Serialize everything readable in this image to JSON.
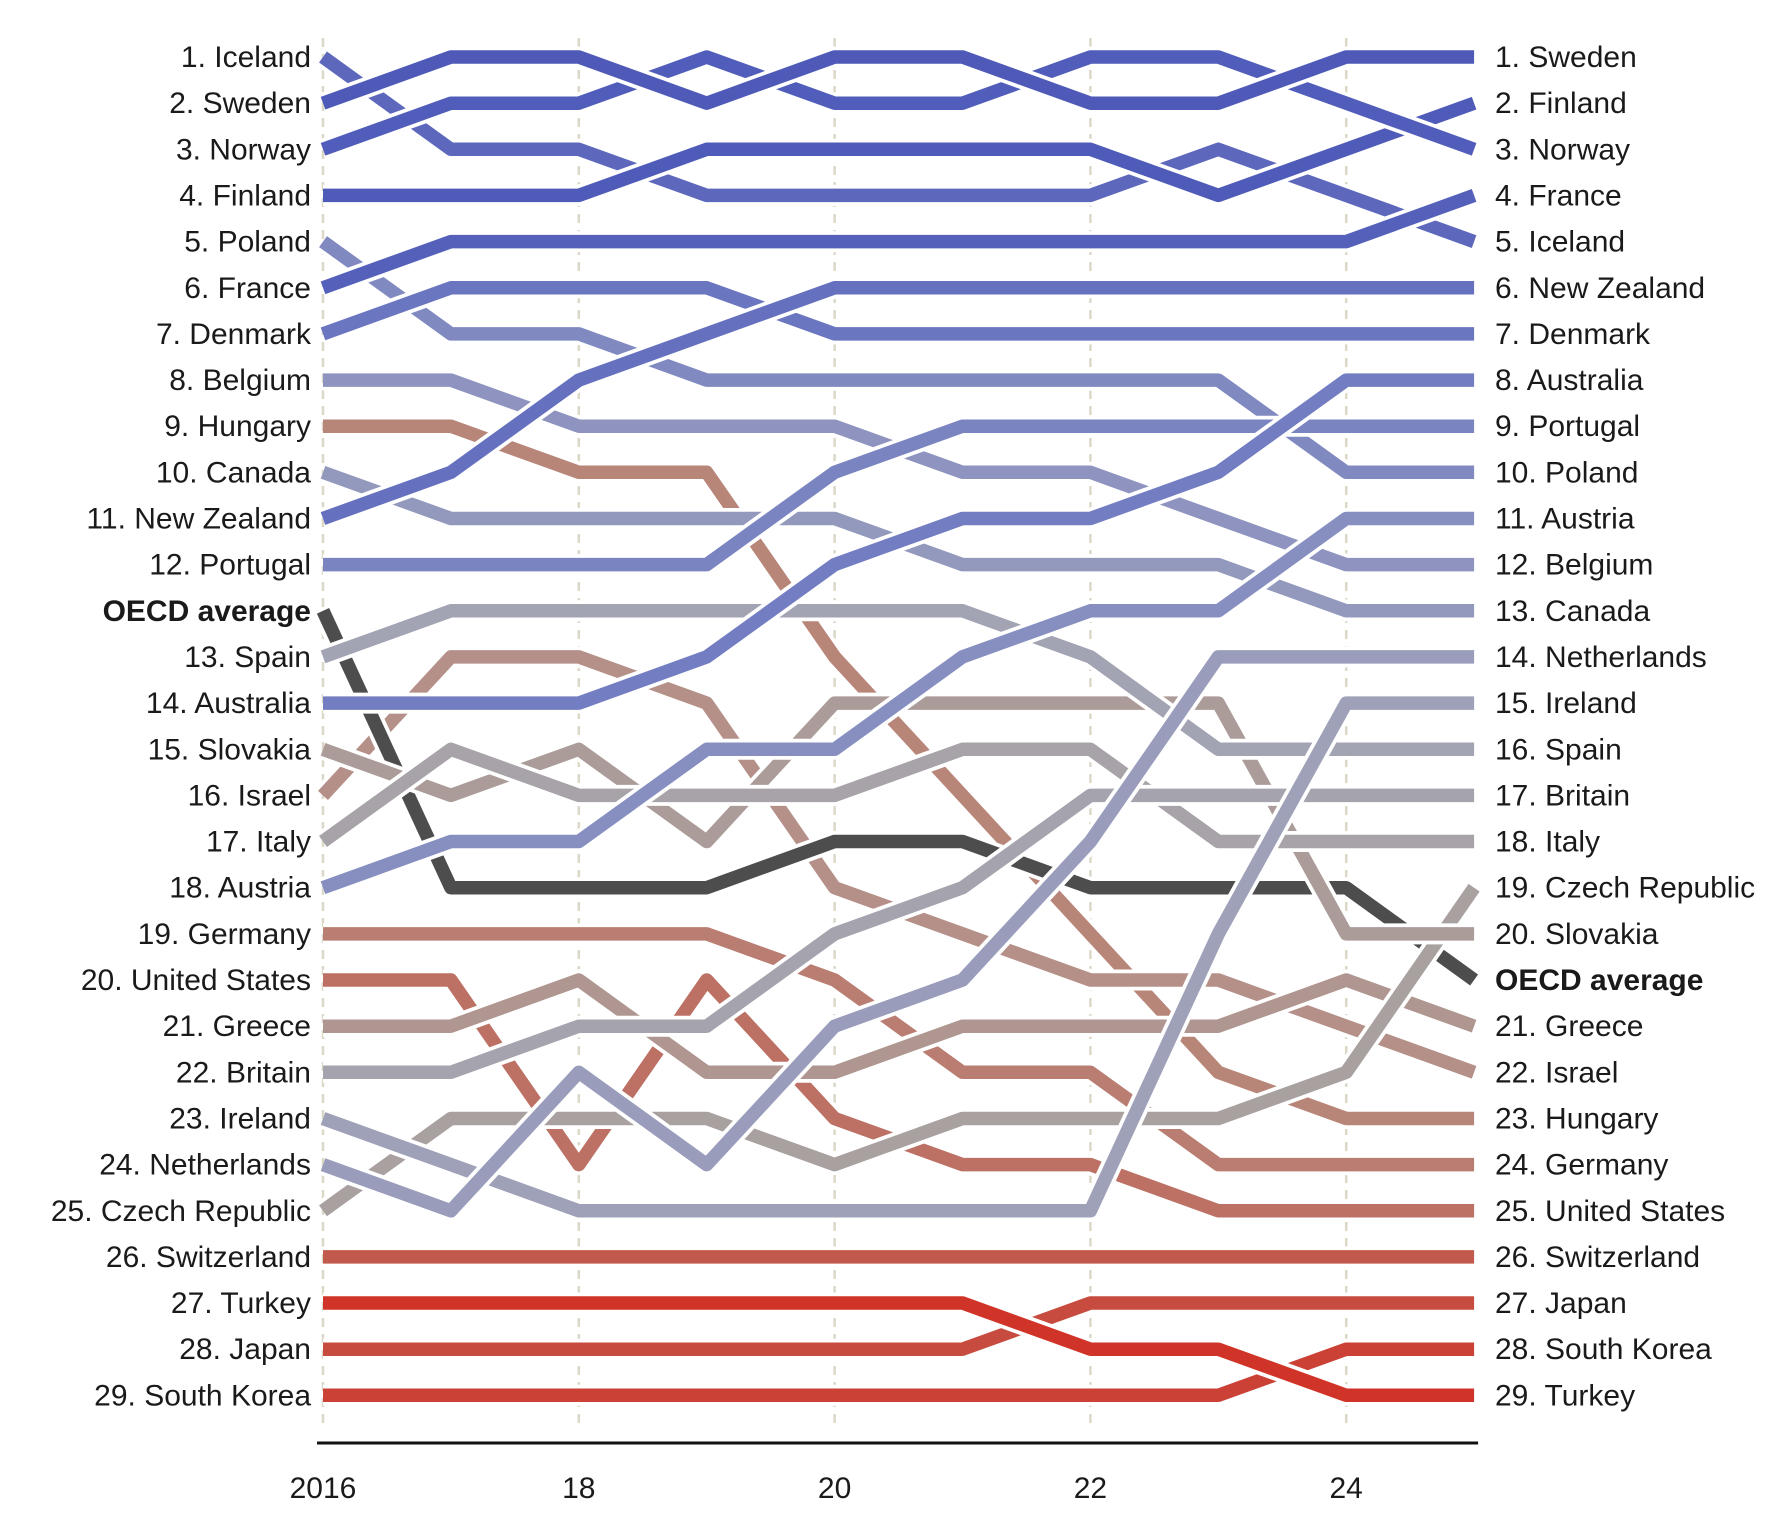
{
  "page": {
    "background": "#ffffff"
  },
  "chart_data": {
    "type": "bump",
    "title": "",
    "subtitle": "",
    "x_axis": {
      "years": [
        2016,
        2017,
        2018,
        2019,
        2020,
        2021,
        2022,
        2023,
        2024,
        2025
      ],
      "ticks": [
        {
          "year": 2016,
          "label": "2016"
        },
        {
          "year": 2018,
          "label": "18"
        },
        {
          "year": 2020,
          "label": "20"
        },
        {
          "year": 2022,
          "label": "22"
        },
        {
          "year": 2024,
          "label": "24"
        }
      ],
      "grid": "dashed-vertical"
    },
    "slot_count": 30,
    "left_labels": [
      "1. Iceland",
      "2. Sweden",
      "3. Norway",
      "4. Finland",
      "5. Poland",
      "6. France",
      "7. Denmark",
      "8. Belgium",
      "9. Hungary",
      "10. Canada",
      "11. New Zealand",
      "12. Portugal",
      "OECD average",
      "13. Spain",
      "14. Australia",
      "15. Slovakia",
      "16. Israel",
      "17. Italy",
      "18. Austria",
      "19. Germany",
      "20. United States",
      "21. Greece",
      "22. Britain",
      "23. Ireland",
      "24. Netherlands",
      "25. Czech Republic",
      "26. Switzerland",
      "27. Turkey",
      "28. Japan",
      "29. South Korea"
    ],
    "right_labels": [
      "1. Sweden",
      "2. Finland",
      "3. Norway",
      "4. France",
      "5. Iceland",
      "6. New Zealand",
      "7. Denmark",
      "8. Australia",
      "9. Portugal",
      "10. Poland",
      "11. Austria",
      "12. Belgium",
      "13. Canada",
      "14. Netherlands",
      "15. Ireland",
      "16. Spain",
      "17. Britain",
      "18. Italy",
      "19. Czech Republic",
      "20. Slovakia",
      "OECD average",
      "21. Greece",
      "22. Israel",
      "23. Hungary",
      "24. Germany",
      "25. United States",
      "26. Switzerland",
      "27. Japan",
      "28. South Korea",
      "29. Turkey"
    ],
    "series": [
      {
        "name": "Iceland",
        "color": "#5d68bd",
        "slots": [
          1,
          3,
          3,
          4,
          4,
          4,
          4,
          3,
          4,
          5
        ]
      },
      {
        "name": "Sweden",
        "color": "#4e59b8",
        "slots": [
          2,
          1,
          1,
          2,
          1,
          1,
          2,
          2,
          1,
          1
        ]
      },
      {
        "name": "Norway",
        "color": "#515dba",
        "slots": [
          3,
          2,
          2,
          1,
          2,
          2,
          1,
          1,
          2,
          3
        ]
      },
      {
        "name": "Finland",
        "color": "#4f5bb9",
        "slots": [
          4,
          4,
          4,
          3,
          3,
          3,
          3,
          4,
          3,
          2
        ]
      },
      {
        "name": "Poland",
        "color": "#8189c1",
        "slots": [
          5,
          7,
          7,
          8,
          8,
          8,
          8,
          8,
          10,
          10
        ]
      },
      {
        "name": "France",
        "color": "#5560bb",
        "slots": [
          6,
          5,
          5,
          5,
          5,
          5,
          5,
          5,
          5,
          4
        ]
      },
      {
        "name": "Denmark",
        "color": "#6b76c0",
        "slots": [
          7,
          6,
          6,
          6,
          7,
          7,
          7,
          7,
          7,
          7
        ]
      },
      {
        "name": "Belgium",
        "color": "#8e94bf",
        "slots": [
          8,
          8,
          9,
          9,
          9,
          10,
          10,
          11,
          12,
          12
        ]
      },
      {
        "name": "Hungary",
        "color": "#b88579",
        "slots": [
          9,
          9,
          10,
          10,
          14,
          17,
          20,
          23,
          24,
          24
        ]
      },
      {
        "name": "Canada",
        "color": "#9399bd",
        "slots": [
          10,
          11,
          11,
          11,
          11,
          12,
          12,
          12,
          13,
          13
        ]
      },
      {
        "name": "New Zealand",
        "color": "#6570bf",
        "slots": [
          11,
          10,
          8,
          7,
          6,
          6,
          6,
          6,
          6,
          6
        ]
      },
      {
        "name": "Portugal",
        "color": "#7a84c1",
        "slots": [
          12,
          12,
          12,
          12,
          10,
          9,
          9,
          9,
          9,
          9
        ]
      },
      {
        "name": "OECD average",
        "color": "#4d4d4d",
        "slots": [
          13,
          19,
          19,
          19,
          18,
          18,
          19,
          19,
          19,
          21
        ],
        "bold": true
      },
      {
        "name": "Spain",
        "color": "#a2a3b3",
        "slots": [
          14,
          13,
          13,
          13,
          13,
          13,
          14,
          16,
          16,
          16
        ]
      },
      {
        "name": "Australia",
        "color": "#737dc1",
        "slots": [
          15,
          15,
          15,
          14,
          12,
          11,
          11,
          10,
          8,
          8
        ]
      },
      {
        "name": "Slovakia",
        "color": "#ab9c99",
        "slots": [
          16,
          17,
          16,
          18,
          15,
          15,
          15,
          15,
          20,
          20
        ]
      },
      {
        "name": "Israel",
        "color": "#b59089",
        "slots": [
          17,
          14,
          14,
          15,
          19,
          20,
          21,
          21,
          22,
          23
        ]
      },
      {
        "name": "Italy",
        "color": "#a7a3a8",
        "slots": [
          18,
          16,
          17,
          17,
          17,
          16,
          16,
          18,
          18,
          18
        ]
      },
      {
        "name": "Austria",
        "color": "#878fc0",
        "slots": [
          19,
          18,
          18,
          16,
          16,
          14,
          13,
          13,
          11,
          11
        ]
      },
      {
        "name": "Germany",
        "color": "#ba7d72",
        "slots": [
          20,
          20,
          20,
          20,
          21,
          23,
          23,
          25,
          25,
          25
        ]
      },
      {
        "name": "United States",
        "color": "#bd7165",
        "slots": [
          21,
          21,
          25,
          21,
          24,
          25,
          25,
          26,
          26,
          26
        ]
      },
      {
        "name": "Greece",
        "color": "#b09690",
        "slots": [
          22,
          22,
          21,
          23,
          23,
          22,
          22,
          22,
          21,
          22
        ]
      },
      {
        "name": "Britain",
        "color": "#a5a4ae",
        "slots": [
          23,
          23,
          22,
          22,
          20,
          19,
          17,
          17,
          17,
          17
        ]
      },
      {
        "name": "Ireland",
        "color": "#9ea1b8",
        "slots": [
          24,
          25,
          26,
          26,
          26,
          26,
          26,
          20,
          15,
          15
        ]
      },
      {
        "name": "Netherlands",
        "color": "#999dbb",
        "slots": [
          25,
          26,
          23,
          25,
          22,
          21,
          18,
          14,
          14,
          14
        ]
      },
      {
        "name": "Czech Republic",
        "color": "#a9a0a0",
        "slots": [
          26,
          24,
          24,
          24,
          25,
          24,
          24,
          24,
          23,
          19
        ]
      },
      {
        "name": "Switzerland",
        "color": "#c15a4d",
        "slots": [
          27,
          27,
          27,
          27,
          27,
          27,
          27,
          27,
          27,
          27
        ]
      },
      {
        "name": "Turkey",
        "color": "#d03327",
        "slots": [
          28,
          28,
          28,
          28,
          28,
          28,
          29,
          29,
          30,
          30
        ]
      },
      {
        "name": "Japan",
        "color": "#c74b3e",
        "slots": [
          29,
          29,
          29,
          29,
          29,
          29,
          28,
          28,
          28,
          28
        ]
      },
      {
        "name": "South Korea",
        "color": "#cb4136",
        "slots": [
          30,
          30,
          30,
          30,
          30,
          30,
          30,
          30,
          29,
          29
        ]
      }
    ],
    "draw_order": [
      "South Korea",
      "Japan",
      "Turkey",
      "Switzerland",
      "United States",
      "Germany",
      "Hungary",
      "Israel",
      "Greece",
      "OECD average",
      "Czech Republic",
      "Slovakia",
      "Italy",
      "Britain",
      "Spain",
      "Ireland",
      "Netherlands",
      "Canada",
      "Belgium",
      "Austria",
      "Poland",
      "Portugal",
      "Australia",
      "Denmark",
      "New Zealand",
      "Iceland",
      "France",
      "Finland",
      "Norway",
      "Sweden"
    ],
    "style": {
      "line_width": 13.5,
      "casing_width": 21,
      "grid_color": "#dbd8c8",
      "axis_color": "#111111",
      "label_color": "#1a1a1a",
      "label_font_size": 30,
      "tick_font_size": 30
    }
  }
}
